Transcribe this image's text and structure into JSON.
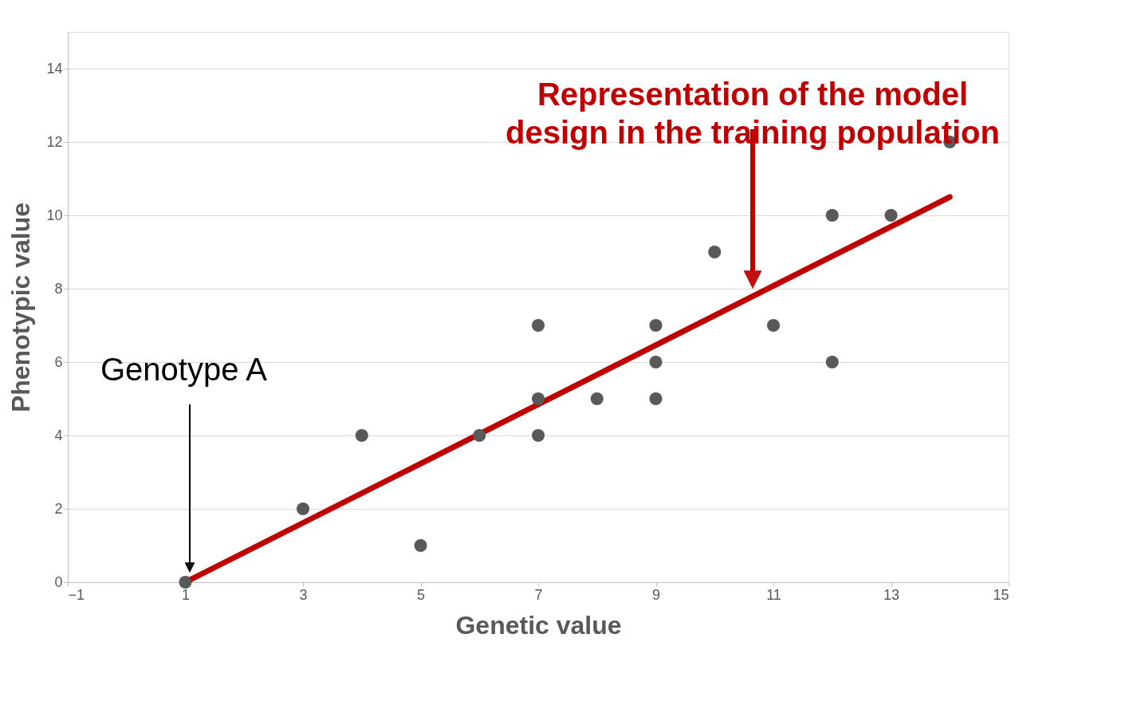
{
  "chart_data": {
    "type": "scatter",
    "xlabel": "Genetic value",
    "ylabel": "Phenotypic value",
    "xlim": [
      -1,
      15
    ],
    "xticks": [
      -1,
      1,
      3,
      5,
      7,
      9,
      11,
      13,
      15
    ],
    "ylim": [
      0,
      15
    ],
    "yticks": [
      0,
      2,
      4,
      6,
      8,
      10,
      12,
      14
    ],
    "grid": "y",
    "series": [
      {
        "marker": "circle",
        "color": "#595959",
        "x": [
          1,
          3,
          4,
          5,
          6,
          7,
          7,
          7,
          8,
          9,
          9,
          9,
          10,
          11,
          12,
          12,
          13,
          14
        ],
        "values": [
          0,
          2,
          4,
          1,
          4,
          7,
          5,
          4,
          5,
          7,
          6,
          5,
          9,
          7,
          10,
          6,
          10,
          12
        ]
      },
      {
        "type": "line",
        "color": "#c00000",
        "x": [
          1,
          14
        ],
        "values": [
          0,
          10.5
        ]
      }
    ],
    "annotations": [
      "Representation of the model design in the training population",
      "Genotype A"
    ]
  }
}
